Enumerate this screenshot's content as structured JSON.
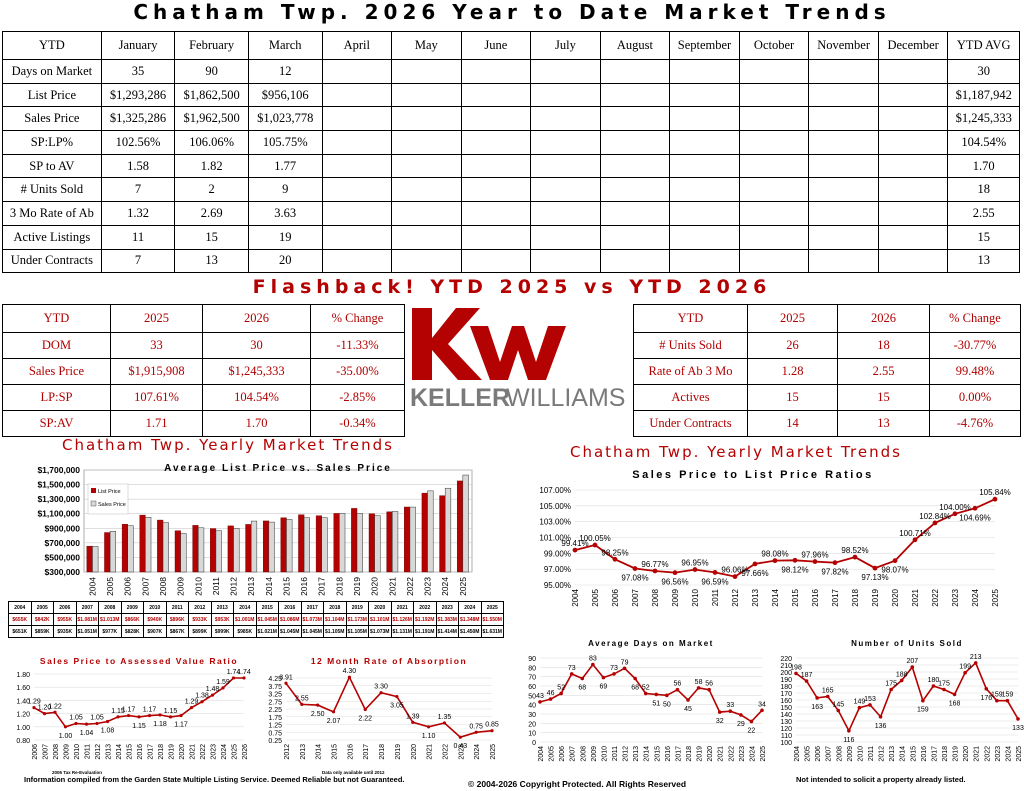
{
  "title": "Chatham Twp. 2026 Year to Date Market Trends",
  "ytd_table": {
    "headers": [
      "YTD",
      "January",
      "February",
      "March",
      "April",
      "May",
      "June",
      "July",
      "August",
      "September",
      "October",
      "November",
      "December",
      "YTD AVG"
    ],
    "rows": [
      [
        "Days on Market",
        "35",
        "90",
        "12",
        "",
        "",
        "",
        "",
        "",
        "",
        "",
        "",
        "",
        "30"
      ],
      [
        "List Price",
        "$1,293,286",
        "$1,862,500",
        "$956,106",
        "",
        "",
        "",
        "",
        "",
        "",
        "",
        "",
        "",
        "$1,187,942"
      ],
      [
        "Sales Price",
        "$1,325,286",
        "$1,962,500",
        "$1,023,778",
        "",
        "",
        "",
        "",
        "",
        "",
        "",
        "",
        "",
        "$1,245,333"
      ],
      [
        "SP:LP%",
        "102.56%",
        "106.06%",
        "105.75%",
        "",
        "",
        "",
        "",
        "",
        "",
        "",
        "",
        "",
        "104.54%"
      ],
      [
        "SP to AV",
        "1.58",
        "1.82",
        "1.77",
        "",
        "",
        "",
        "",
        "",
        "",
        "",
        "",
        "",
        "1.70"
      ],
      [
        "# Units Sold",
        "7",
        "2",
        "9",
        "",
        "",
        "",
        "",
        "",
        "",
        "",
        "",
        "",
        "18"
      ],
      [
        "3 Mo Rate of Ab",
        "1.32",
        "2.69",
        "3.63",
        "",
        "",
        "",
        "",
        "",
        "",
        "",
        "",
        "",
        "2.55"
      ],
      [
        "Active Listings",
        "11",
        "15",
        "19",
        "",
        "",
        "",
        "",
        "",
        "",
        "",
        "",
        "",
        "15"
      ],
      [
        "Under Contracts",
        "7",
        "13",
        "20",
        "",
        "",
        "",
        "",
        "",
        "",
        "",
        "",
        "",
        "13"
      ]
    ]
  },
  "flashback_title": "Flashback!  YTD 2025 vs YTD 2026",
  "flash_left": {
    "headers": [
      "YTD",
      "2025",
      "2026",
      "% Change"
    ],
    "rows": [
      [
        "DOM",
        "33",
        "30",
        "-11.33%"
      ],
      [
        "Sales Price",
        "$1,915,908",
        "$1,245,333",
        "-35.00%"
      ],
      [
        "LP:SP",
        "107.61%",
        "104.54%",
        "-2.85%"
      ],
      [
        "SP:AV",
        "1.71",
        "1.70",
        "-0.34%"
      ]
    ]
  },
  "flash_right": {
    "headers": [
      "YTD",
      "2025",
      "2026",
      "% Change"
    ],
    "rows": [
      [
        "# Units Sold",
        "26",
        "18",
        "-30.77%"
      ],
      [
        "Rate of Ab 3 Mo",
        "1.28",
        "2.55",
        "99.48%"
      ],
      [
        "Actives",
        "15",
        "15",
        "0.00%"
      ],
      [
        "Under Contracts",
        "14",
        "13",
        "-4.76%"
      ]
    ]
  },
  "logo": {
    "text_bold": "KELLER",
    "text_light": "WILLIAMS",
    "mark": "kw",
    "color": "#b40101"
  },
  "colors": {
    "red": "#b40101",
    "bar_gray": "#d8d8d8"
  },
  "sections": {
    "left_heading": "Chatham Twp. Yearly Market Trends",
    "right_heading": "Chatham Twp. Yearly Market Trends",
    "right_subheading": "Sales Price to List Price Ratios"
  },
  "chart_data": [
    {
      "type": "bar",
      "title": "Average List Price vs. Sales Price",
      "categories": [
        "2004",
        "2005",
        "2006",
        "2007",
        "2008",
        "2009",
        "2010",
        "2011",
        "2012",
        "2013",
        "2014",
        "2015",
        "2016",
        "2017",
        "2018",
        "2019",
        "2020",
        "2021",
        "2022",
        "2023",
        "2024",
        "2025"
      ],
      "series": [
        {
          "name": "List Price",
          "values": [
            655000,
            842000,
            955000,
            1081000,
            1013000,
            866000,
            940000,
            896000,
            933000,
            953000,
            1001000,
            1045000,
            1086000,
            1073000,
            1104000,
            1173000,
            1101000,
            1126000,
            1192000,
            1383000,
            1348000,
            1550000
          ]
        },
        {
          "name": "Sales Price",
          "values": [
            651000,
            859000,
            935000,
            1051000,
            977000,
            828000,
            907000,
            867000,
            899000,
            999000,
            985000,
            1021000,
            1045000,
            1045000,
            1105000,
            1105000,
            1073000,
            1131000,
            1191000,
            1414000,
            1450000,
            1631000
          ]
        }
      ],
      "yticks": [
        "$300,000",
        "$500,000",
        "$700,000",
        "$900,000",
        "$1,100,000",
        "$1,300,000",
        "$1,500,000",
        "$1,700,000"
      ],
      "ylim": [
        300000,
        1700000
      ]
    },
    {
      "type": "table",
      "years": [
        "2004",
        "2005",
        "2006",
        "2007",
        "2008",
        "2009",
        "2010",
        "2011",
        "2012",
        "2013",
        "2014",
        "2015",
        "2016",
        "2017",
        "2018",
        "2019",
        "2020",
        "2021",
        "2022",
        "2023",
        "2024",
        "2025"
      ],
      "rows": [
        {
          "label": "LP",
          "values": [
            "$655K",
            "$842K",
            "$955K",
            "$1.081M",
            "$1.013M",
            "$866K",
            "$940K",
            "$896K",
            "$933K",
            "$953K",
            "$1.001M",
            "$1.045M",
            "$1.086M",
            "$1.073M",
            "$1.104M",
            "$1.173M",
            "$1.101M",
            "$1.126M",
            "$1.192M",
            "$1.383M",
            "$1.348M",
            "$1.550M"
          ]
        },
        {
          "label": "SP",
          "values": [
            "$651K",
            "$859K",
            "$935K",
            "$1.051M",
            "$977K",
            "$828K",
            "$907K",
            "$867K",
            "$899K",
            "$999K",
            "$985K",
            "$1.021M",
            "$1.045M",
            "$1.045M",
            "$1.105M",
            "$1.105M",
            "$1.073M",
            "$1.131M",
            "$1.191M",
            "$1.414M",
            "$1.450M",
            "$1.631M"
          ]
        }
      ]
    },
    {
      "type": "line",
      "title": "Sales Price to List Price Ratios",
      "categories": [
        "2004",
        "2005",
        "2006",
        "2007",
        "2008",
        "2009",
        "2010",
        "2011",
        "2012",
        "2013",
        "2014",
        "2015",
        "2016",
        "2017",
        "2018",
        "2019",
        "2020",
        "2021",
        "2022",
        "2023",
        "2024",
        "2025"
      ],
      "values": [
        99.41,
        100.05,
        98.25,
        97.08,
        96.77,
        96.56,
        96.95,
        96.59,
        96.06,
        97.66,
        98.08,
        98.12,
        97.96,
        97.82,
        98.52,
        97.13,
        98.07,
        100.71,
        102.84,
        104.0,
        104.69,
        105.84
      ],
      "labels": [
        "99.41%",
        "100.05%",
        "98.25%",
        "97.08%",
        "96.77%",
        "96.56%",
        "96.95%",
        "96.59%",
        "96.06%",
        "97.66%",
        "98.08%",
        "98.12%",
        "97.96%",
        "97.82%",
        "98.52%",
        "97.13%",
        "98.07%",
        "100.71%",
        "102.84%",
        "104.00%",
        "104.69%",
        "105.84%"
      ],
      "yticks": [
        "95.00%",
        "97.00%",
        "99.00%",
        "101.00%",
        "103.00%",
        "105.00%",
        "107.00%"
      ],
      "ylim": [
        95,
        107
      ]
    },
    {
      "type": "line",
      "title": "Sales Price to Assessed Value Ratio",
      "categories": [
        "2006",
        "2007",
        "2008",
        "2009",
        "2010",
        "2011",
        "2012",
        "2013",
        "2014",
        "2015",
        "2016",
        "2017",
        "2018",
        "2019",
        "2020",
        "2021",
        "2022",
        "2023",
        "2024",
        "2025",
        "2026"
      ],
      "values": [
        1.29,
        1.2,
        1.22,
        1.0,
        1.05,
        1.04,
        1.05,
        1.08,
        1.15,
        1.17,
        1.15,
        1.17,
        1.18,
        1.15,
        1.17,
        1.29,
        1.38,
        1.48,
        1.59,
        1.74,
        1.74
      ],
      "labels": [
        "1.29",
        "1.20",
        "1.22",
        "1.00",
        "1.05",
        "1.04",
        "1.05",
        "1.08",
        "1.15",
        "1.17",
        "1.15",
        "1.17",
        "1.18",
        "1.15",
        "1.17",
        "1.29",
        "1.38",
        "1.48",
        "1.59",
        "1.74",
        "1.74"
      ],
      "yticks": [
        "0.80",
        "1.00",
        "1.20",
        "1.40",
        "1.60",
        "1.80"
      ],
      "ylim": [
        0.8,
        1.8
      ],
      "footnote": "2006 Tax Re-Evaluation"
    },
    {
      "type": "line",
      "title": "12 Month Rate of Absorption",
      "categories": [
        "2012",
        "2013",
        "2014",
        "2015",
        "2016",
        "2017",
        "2018",
        "2019",
        "2020",
        "2021",
        "2022",
        "2023",
        "2024",
        "2025"
      ],
      "values": [
        3.91,
        2.55,
        2.5,
        2.07,
        4.3,
        2.22,
        3.3,
        3.05,
        1.39,
        1.1,
        1.35,
        0.43,
        0.75,
        0.85
      ],
      "labels": [
        "3.91",
        "2.55",
        "2.50",
        "2.07",
        "4.30",
        "2.22",
        "3.30",
        "3.05",
        "1.39",
        "1.10",
        "1.35",
        "0.43",
        "0.75",
        "0.85"
      ],
      "yticks": [
        "0.25",
        "0.75",
        "1.25",
        "1.75",
        "2.25",
        "2.75",
        "3.25",
        "3.75",
        "4.25"
      ],
      "ylim": [
        0.25,
        4.25
      ],
      "footnote": "Data only available until 2012"
    },
    {
      "type": "line",
      "title": "Average Days on Market",
      "categories": [
        "2004",
        "2005",
        "2006",
        "2007",
        "2008",
        "2009",
        "2010",
        "2011",
        "2012",
        "2013",
        "2014",
        "2015",
        "2016",
        "2017",
        "2018",
        "2019",
        "2020",
        "2021",
        "2022",
        "2023",
        "2024",
        "2025"
      ],
      "values": [
        43,
        46,
        52,
        73,
        68,
        83,
        69,
        73,
        79,
        68,
        52,
        51,
        50,
        56,
        45,
        58,
        56,
        32,
        33,
        29,
        22,
        34
      ],
      "labels": [
        "43",
        "46",
        "52",
        "73",
        "68",
        "83",
        "69",
        "73",
        "79",
        "68",
        "52",
        "51",
        "50",
        "56",
        "45",
        "58",
        "56",
        "32",
        "33",
        "29",
        "22",
        "34"
      ],
      "yticks": [
        "0",
        "10",
        "20",
        "30",
        "40",
        "50",
        "60",
        "70",
        "80",
        "90"
      ],
      "ylim": [
        0,
        90
      ]
    },
    {
      "type": "line",
      "title": "Number of Units Sold",
      "categories": [
        "2004",
        "2005",
        "2006",
        "2007",
        "2008",
        "2009",
        "2010",
        "2011",
        "2012",
        "2013",
        "2014",
        "2015",
        "2016",
        "2017",
        "2018",
        "2019",
        "2020",
        "2021",
        "2022",
        "2023",
        "2024",
        "2025"
      ],
      "values": [
        198,
        187,
        163,
        165,
        145,
        116,
        149,
        153,
        136,
        175,
        188,
        207,
        159,
        180,
        175,
        168,
        199,
        213,
        176,
        159,
        159,
        133
      ],
      "labels": [
        "198",
        "187",
        "163",
        "165",
        "145",
        "116",
        "149",
        "153",
        "136",
        "175",
        "188",
        "207",
        "159",
        "180",
        "175",
        "168",
        "199",
        "213",
        "176",
        "159",
        "159",
        "133"
      ],
      "yticks": [
        "100",
        "110",
        "120",
        "130",
        "140",
        "150",
        "160",
        "170",
        "180",
        "190",
        "200",
        "210",
        "220"
      ],
      "ylim": [
        100,
        220
      ]
    }
  ],
  "footer": {
    "left": "Information compiled from the Garden State Multiple Listing Service.  Deemed Reliable but not Guaranteed.",
    "center": "© 2004-2026 Copyright Protected.  All Rights Reserved",
    "right": "Not intended to solicit a property already listed."
  }
}
